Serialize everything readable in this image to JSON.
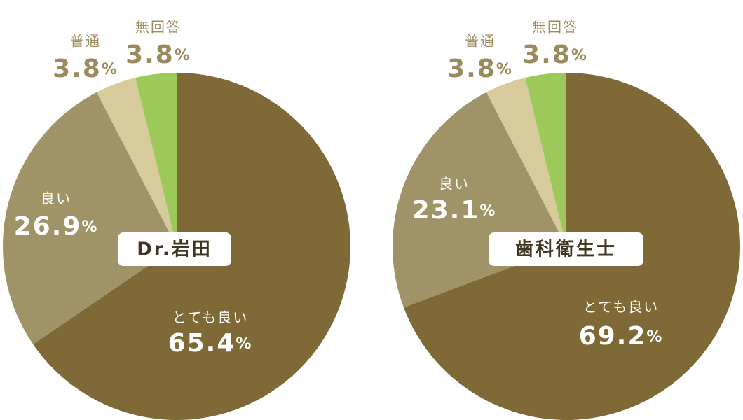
{
  "chart_data": [
    {
      "type": "pie",
      "title": "Dr.岩田",
      "categories": [
        "とても良い",
        "良い",
        "普通",
        "無回答"
      ],
      "values": [
        65.4,
        26.9,
        3.8,
        3.8
      ],
      "value_labels": [
        "65.4%",
        "26.9%",
        "3.8%",
        "3.8%"
      ],
      "colors": [
        "#7e6937",
        "#a09368",
        "#d7ca9b",
        "#9dc95b"
      ]
    },
    {
      "type": "pie",
      "title": "歯科衛生士",
      "categories": [
        "とても良い",
        "良い",
        "普通",
        "無回答"
      ],
      "values": [
        69.2,
        23.1,
        3.8,
        3.8
      ],
      "value_labels": [
        "69.2%",
        "23.1%",
        "3.8%",
        "3.8%"
      ],
      "colors": [
        "#7e6937",
        "#a09368",
        "#d7ca9b",
        "#9dc95b"
      ]
    }
  ]
}
